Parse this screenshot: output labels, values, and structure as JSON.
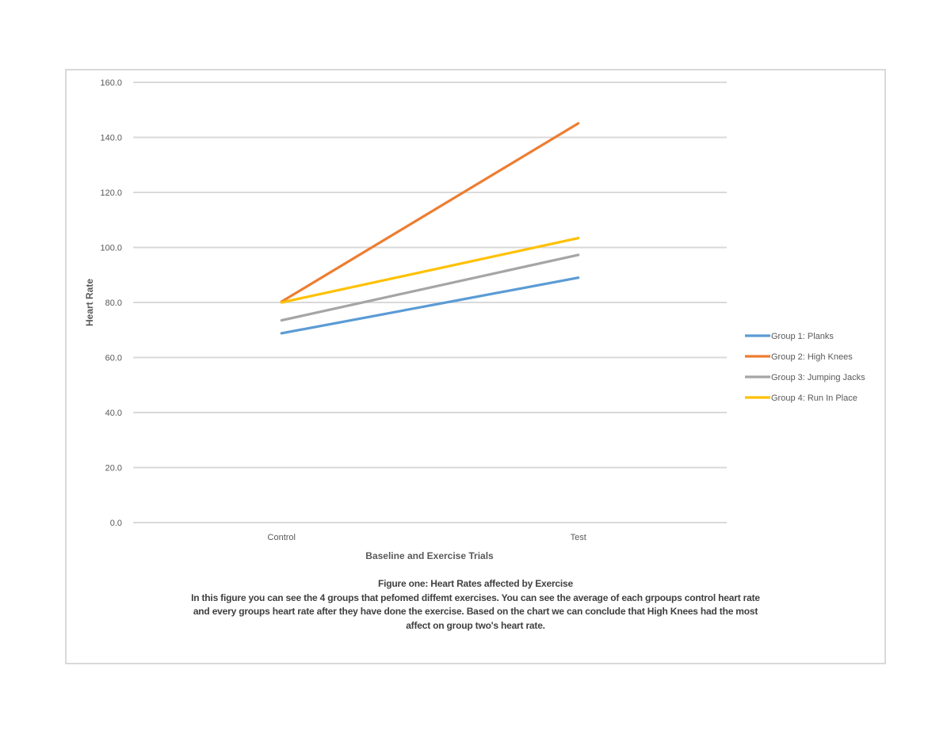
{
  "chart_data": {
    "type": "line",
    "title": "",
    "xlabel": "Baseline and Exercise Trials",
    "ylabel": "Heart Rate",
    "categories": [
      "Control",
      "Test"
    ],
    "ylim": [
      0,
      160
    ],
    "yticks": [
      "0.0",
      "20.0",
      "40.0",
      "60.0",
      "80.0",
      "100.0",
      "120.0",
      "140.0",
      "160.0"
    ],
    "grid": true,
    "legend_position": "right",
    "series": [
      {
        "name": "Group 1: Planks",
        "color": "#5b9bd5",
        "values": [
          68.8,
          89.0
        ]
      },
      {
        "name": "Group 2: High Knees",
        "color": "#ed7d31",
        "values": [
          80.3,
          145.1
        ]
      },
      {
        "name": "Group 3: Jumping Jacks",
        "color": "#a5a5a5",
        "values": [
          73.5,
          97.3
        ]
      },
      {
        "name": "Group 4: Run In Place",
        "color": "#ffc000",
        "values": [
          80.0,
          103.4
        ]
      }
    ]
  },
  "caption": {
    "title": "Figure one: Heart Rates affected by Exercise",
    "lines": [
      "In this figure you can see the 4 groups that pefomed diffemt exercises.  You can see the average of each grpoups control heart rate",
      "and every groups heart  rate after they have done the exercise. Based on the chart we can conclude  that High Knees had the most",
      "affect on group  two's heart rate."
    ]
  }
}
